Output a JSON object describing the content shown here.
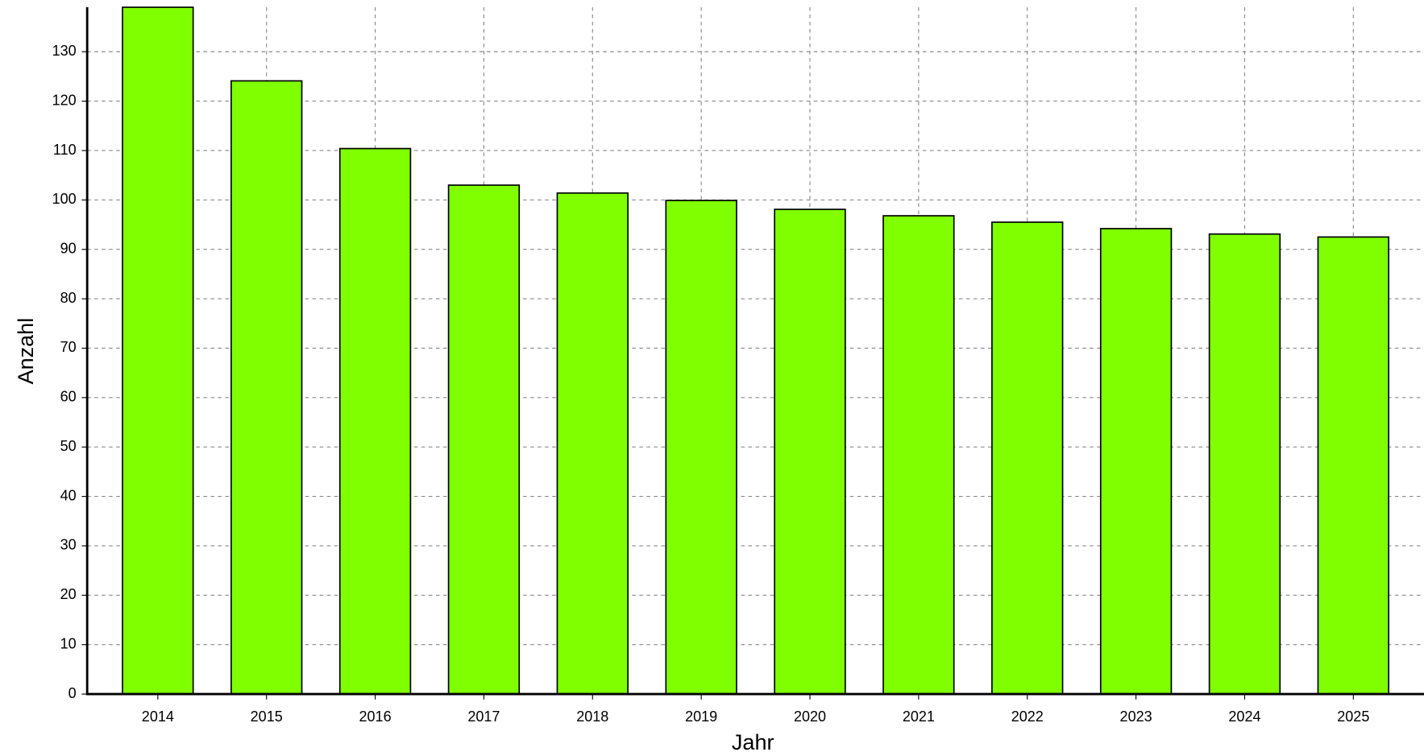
{
  "chart_data": {
    "type": "bar",
    "x_label": "Jahr",
    "y_label": "Anzahl",
    "categories": [
      "2014",
      "2015",
      "2016",
      "2017",
      "2018",
      "2019",
      "2020",
      "2021",
      "2022",
      "2023",
      "2024",
      "2025"
    ],
    "values": [
      139,
      124.1,
      110.4,
      103.0,
      101.4,
      99.9,
      98.1,
      96.8,
      95.5,
      94.2,
      93.1,
      92.5
    ],
    "color": "#80ff00",
    "ylim": [
      0,
      139
    ],
    "yticks": [
      0,
      10,
      20,
      30,
      40,
      50,
      60,
      70,
      80,
      90,
      100,
      110,
      120,
      130
    ],
    "grid": true
  }
}
